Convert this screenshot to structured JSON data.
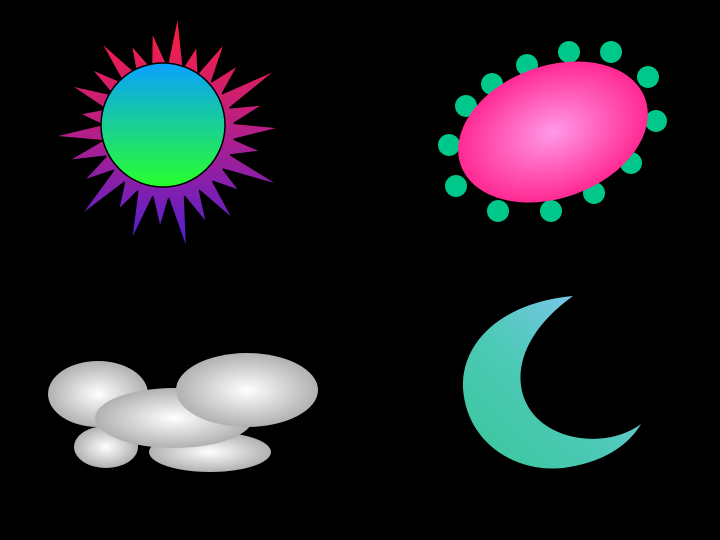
{
  "canvas": {
    "background": "#000000"
  },
  "shapes": {
    "sun": {
      "icon": "sun-icon",
      "colors": {
        "disc_top": "#0aa0ff",
        "disc_bottom": "#28ff2a",
        "rays_top": "#ff1e3c",
        "rays_mid": "#b21f8a",
        "rays_bottom": "#4b1fd6"
      }
    },
    "bug": {
      "icon": "pink-oval-with-dots-icon",
      "colors": {
        "body_center": "#ff9ae8",
        "body_edge": "#ff1e8a",
        "dots": "#00c88a"
      }
    },
    "cloud": {
      "icon": "cloud-icon",
      "colors": {
        "center": "#ffffff",
        "edge": "#a9a9a9"
      }
    },
    "moon": {
      "icon": "crescent-moon-icon",
      "colors": {
        "light": "#8fc7ff",
        "mid": "#4cc9b6",
        "deep": "#39c69a"
      }
    }
  }
}
